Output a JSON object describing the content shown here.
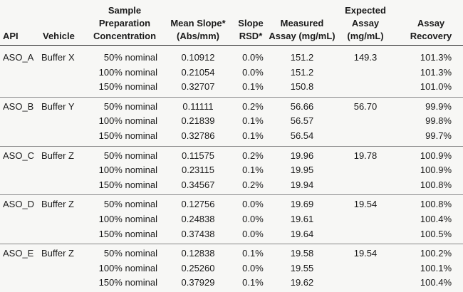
{
  "header": {
    "columns": [
      [
        "API"
      ],
      [
        "Vehicle"
      ],
      [
        "Sample",
        "Preparation",
        "Concentration"
      ],
      [
        "Mean Slope*",
        "(Abs/mm)"
      ],
      [
        "Slope",
        "RSD*"
      ],
      [
        "Measured",
        "Assay (mg/mL)"
      ],
      [
        "Expected",
        "Assay",
        "(mg/mL)"
      ],
      [
        "Assay",
        "Recovery"
      ]
    ]
  },
  "groups": [
    {
      "api": "ASO_A",
      "vehicle": "Buffer X",
      "expected": "149.3",
      "rows": [
        {
          "concentration": "50% nominal",
          "slope": "0.10912",
          "rsd": "0.0%",
          "measured": "151.2",
          "recovery": "101.3%"
        },
        {
          "concentration": "100% nominal",
          "slope": "0.21054",
          "rsd": "0.0%",
          "measured": "151.2",
          "recovery": "101.3%"
        },
        {
          "concentration": "150% nominal",
          "slope": "0.32707",
          "rsd": "0.1%",
          "measured": "150.8",
          "recovery": "101.0%"
        }
      ]
    },
    {
      "api": "ASO_B",
      "vehicle": "Buffer Y",
      "expected": "56.70",
      "rows": [
        {
          "concentration": "50% nominal",
          "slope": "0.11111",
          "rsd": "0.2%",
          "measured": "56.66",
          "recovery": "99.9%"
        },
        {
          "concentration": "100% nominal",
          "slope": "0.21839",
          "rsd": "0.1%",
          "measured": "56.57",
          "recovery": "99.8%"
        },
        {
          "concentration": "150% nominal",
          "slope": "0.32786",
          "rsd": "0.1%",
          "measured": "56.54",
          "recovery": "99.7%"
        }
      ]
    },
    {
      "api": "ASO_C",
      "vehicle": "Buffer Z",
      "expected": "19.78",
      "rows": [
        {
          "concentration": "50% nominal",
          "slope": "0.11575",
          "rsd": "0.2%",
          "measured": "19.96",
          "recovery": "100.9%"
        },
        {
          "concentration": "100% nominal",
          "slope": "0.23115",
          "rsd": "0.1%",
          "measured": "19.95",
          "recovery": "100.9%"
        },
        {
          "concentration": "150% nominal",
          "slope": "0.34567",
          "rsd": "0.2%",
          "measured": "19.94",
          "recovery": "100.8%"
        }
      ]
    },
    {
      "api": "ASO_D",
      "vehicle": "Buffer Z",
      "expected": "19.54",
      "rows": [
        {
          "concentration": "50% nominal",
          "slope": "0.12756",
          "rsd": "0.0%",
          "measured": "19.69",
          "recovery": "100.8%"
        },
        {
          "concentration": "100% nominal",
          "slope": "0.24838",
          "rsd": "0.0%",
          "measured": "19.61",
          "recovery": "100.4%"
        },
        {
          "concentration": "150% nominal",
          "slope": "0.37438",
          "rsd": "0.0%",
          "measured": "19.64",
          "recovery": "100.5%"
        }
      ]
    },
    {
      "api": "ASO_E",
      "vehicle": "Buffer Z",
      "expected": "19.54",
      "rows": [
        {
          "concentration": "50% nominal",
          "slope": "0.12838",
          "rsd": "0.1%",
          "measured": "19.58",
          "recovery": "100.2%"
        },
        {
          "concentration": "100% nominal",
          "slope": "0.25260",
          "rsd": "0.0%",
          "measured": "19.55",
          "recovery": "100.1%"
        },
        {
          "concentration": "150% nominal",
          "slope": "0.37929",
          "rsd": "0.1%",
          "measured": "19.62",
          "recovery": "100.4%"
        }
      ]
    }
  ]
}
